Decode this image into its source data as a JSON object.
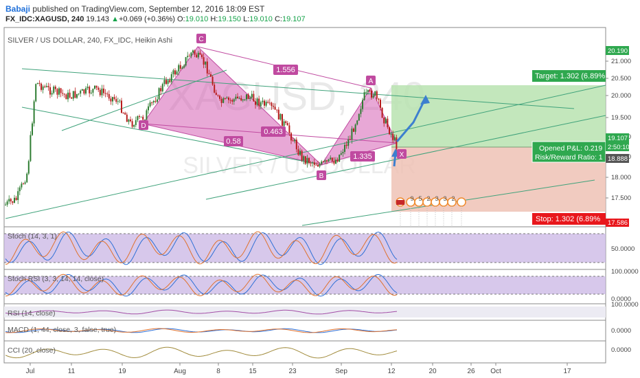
{
  "header": {
    "author": "Babaji",
    "published": " published on TradingView.com, September 12, 2016 18:09 EST",
    "symbol": "FX_IDC:XAGUSD, 240",
    "price": "19.143",
    "change": "+0.069 (+0.36%)",
    "o_label": "O:",
    "o": "19.010",
    "h_label": "H:",
    "h": "19.150",
    "l_label": "L:",
    "l": "19.010",
    "c_label": "C:",
    "c": "19.107",
    "up_arrow": "▲"
  },
  "main_pane": {
    "legend": "SILVER / US DOLLAR, 240, FX_IDC, Heikin Ashi",
    "watermark_big": "XAGUSD, 240",
    "watermark_small": "SILVER / US DOLLAR",
    "price_ticks": [
      "21.000",
      "20.500",
      "20.000",
      "19.500",
      "19.000",
      "18.500",
      "18.000",
      "17.500"
    ],
    "price_tags": {
      "high": "20.190",
      "last": "19.107",
      "timer": "2:50:10",
      "level": "18.888",
      "stop_level": "17.586"
    },
    "pattern_points": {
      "c": "C",
      "d": "D",
      "b": "B",
      "a": "A",
      "x": "X"
    },
    "ratios": {
      "r1": "1.556",
      "r2": "0.463",
      "r3": "0.58",
      "r4": "1.335"
    },
    "target_label": "Target: 1.302 (6.89%",
    "stop_label": "Stop: 1.302 (6.89%",
    "pnl_label": "Opened P&L: 0.219",
    "rr_label": "Risk/Reward Ratio: 1",
    "event_digits": [
      "9",
      "5",
      "2",
      "3",
      "3",
      "2"
    ]
  },
  "indicators": [
    {
      "name": "Stoch (14, 3, 1)",
      "tick": "50.0000"
    },
    {
      "name": "Stoch RSI (3, 3, 14, 14, close)",
      "tick_top": "100.0000",
      "tick": "0.0000"
    },
    {
      "name": "RSI (14, close)",
      "tick": "100.0000"
    },
    {
      "name": "MACD (1, 44, close, 3, false, true)",
      "tick": "0.0000"
    },
    {
      "name": "CCI (20, close)",
      "tick": "0.0000"
    }
  ],
  "time_axis": [
    "Jul",
    "11",
    "19",
    "Aug",
    "8",
    "15",
    "23",
    "Sep",
    "12",
    "20",
    "26",
    "Oct",
    "17"
  ],
  "colors": {
    "candle_up": "#2e7d32",
    "candle_down": "#b71c1c",
    "harmonic_fill": "#d660b4",
    "target_zone": "#b9e3b0",
    "stop_zone": "#efc2b5",
    "stoch_bg": "#c9b6e4",
    "trend_line": "#3fa27a",
    "accent_arrow": "#3d7fcf",
    "target_tag": "#2fa84f",
    "stop_tag": "#e8171c"
  }
}
